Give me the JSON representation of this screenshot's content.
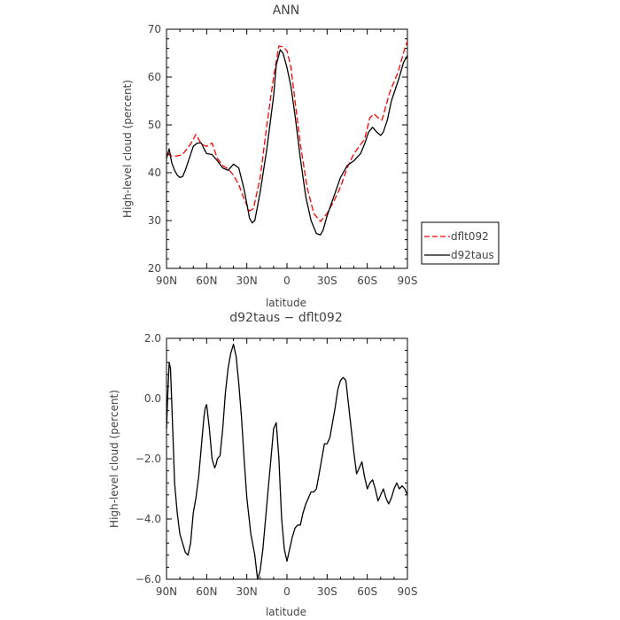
{
  "chart_data": [
    {
      "type": "line",
      "title": "ANN",
      "xlabel": "latitude",
      "ylabel": "High-level cloud (percent)",
      "xlim": [
        90,
        -90
      ],
      "ylim": [
        20,
        70
      ],
      "xticks": [
        90,
        60,
        30,
        0,
        -30,
        -60,
        -90
      ],
      "xtick_labels": [
        "90N",
        "60N",
        "30N",
        "0",
        "30S",
        "60S",
        "90S"
      ],
      "yticks": [
        20,
        30,
        40,
        50,
        60,
        70
      ],
      "ytick_labels": [
        "20",
        "30",
        "40",
        "50",
        "60",
        "70"
      ],
      "legend": {
        "placement": "right",
        "entries": [
          "dflt092",
          "d92taus"
        ]
      },
      "series": [
        {
          "name": "dflt092",
          "color": "#ff0000",
          "style": "dashed",
          "x": [
            90,
            86,
            82,
            78,
            72,
            68,
            64,
            60,
            56,
            52,
            48,
            44,
            40,
            36,
            32,
            28,
            25,
            20,
            15,
            10,
            6,
            3,
            0,
            -3,
            -6,
            -10,
            -15,
            -20,
            -25,
            -30,
            -35,
            -40,
            -45,
            -50,
            -54,
            -58,
            -62,
            -65,
            -68,
            -71,
            -74,
            -77,
            -80,
            -83,
            -86,
            -88,
            -90
          ],
          "y": [
            44,
            43.5,
            43.5,
            43.8,
            46,
            48,
            46,
            45.5,
            46.2,
            43,
            41.5,
            40.8,
            39.5,
            37.5,
            34.5,
            32,
            32.5,
            39,
            50,
            60,
            66.5,
            66.3,
            65.5,
            62,
            55,
            46,
            37,
            31.5,
            29.8,
            31.5,
            34,
            37,
            41,
            44,
            45.5,
            47,
            51.5,
            52.3,
            51.5,
            51,
            54,
            57,
            59,
            61,
            64,
            66,
            67.5
          ]
        },
        {
          "name": "d92taus",
          "color": "#000000",
          "style": "solid",
          "x": [
            90,
            88,
            86,
            84,
            82,
            80,
            78,
            76,
            73,
            70,
            67,
            64,
            62,
            60,
            56,
            52,
            48,
            44,
            40,
            36,
            32,
            30,
            28,
            26,
            24,
            20,
            15,
            10,
            8,
            5,
            3,
            0,
            -3,
            -6,
            -10,
            -14,
            -18,
            -22,
            -25,
            -27,
            -30,
            -35,
            -40,
            -45,
            -50,
            -55,
            -58,
            -61,
            -64,
            -67,
            -70,
            -72,
            -75,
            -78,
            -81,
            -84,
            -87,
            -90
          ],
          "y": [
            43,
            45,
            42,
            40.5,
            39.5,
            39,
            39.2,
            40.5,
            43,
            45.5,
            46.2,
            46.2,
            45,
            44,
            43.8,
            42.5,
            41,
            40.5,
            41.8,
            41,
            36.5,
            33.5,
            30.5,
            29.5,
            30,
            36,
            45,
            56,
            62.5,
            65.7,
            65,
            62,
            58,
            52,
            43,
            35,
            30,
            27.3,
            27,
            28,
            31,
            35,
            39,
            41.5,
            42.5,
            44,
            46,
            48.5,
            49.5,
            48.5,
            47.8,
            48.5,
            51,
            55,
            57.5,
            60,
            63,
            64.5
          ]
        }
      ]
    },
    {
      "type": "line",
      "title": "d92taus − dflt092",
      "xlabel": "latitude",
      "ylabel": "High-level cloud (percent)",
      "xlim": [
        90,
        -90
      ],
      "ylim": [
        -6,
        2
      ],
      "xticks": [
        90,
        60,
        30,
        0,
        -30,
        -60,
        -90
      ],
      "xtick_labels": [
        "90N",
        "60N",
        "30N",
        "0",
        "30S",
        "60S",
        "90S"
      ],
      "yticks": [
        2,
        0,
        -2,
        -4,
        -6
      ],
      "ytick_labels": [
        "2.0",
        "0.0",
        "−2.0",
        "−4.0",
        "−6.0"
      ],
      "series": [
        {
          "color": "#000000",
          "style": "solid",
          "x": [
            90,
            89,
            88,
            87,
            86,
            85,
            84,
            83,
            82,
            80,
            78,
            76,
            74,
            72,
            70,
            68,
            66,
            64,
            62,
            61,
            60,
            58,
            56,
            54,
            53,
            52,
            50,
            48,
            46,
            44,
            42,
            40,
            38,
            36,
            34,
            32,
            30,
            27,
            24,
            22,
            20,
            18,
            16,
            14,
            12,
            10,
            8,
            6,
            5,
            4,
            2,
            0,
            -2,
            -4,
            -6,
            -8,
            -10,
            -12,
            -14,
            -16,
            -18,
            -20,
            -22,
            -24,
            -26,
            -28,
            -30,
            -32,
            -34,
            -36,
            -38,
            -40,
            -42,
            -44,
            -46,
            -48,
            -50,
            -52,
            -54,
            -56,
            -58,
            -60,
            -62,
            -64,
            -66,
            -68,
            -70,
            -72,
            -74,
            -76,
            -78,
            -80,
            -82,
            -84,
            -86,
            -88,
            -90
          ],
          "y": [
            -1,
            0.2,
            1.2,
            1.0,
            -0.2,
            -1.5,
            -2.8,
            -3.3,
            -3.8,
            -4.5,
            -4.8,
            -5.1,
            -5.2,
            -4.8,
            -3.8,
            -3.3,
            -2.6,
            -1.6,
            -0.6,
            -0.3,
            -0.2,
            -1,
            -2,
            -2.3,
            -2.2,
            -2.0,
            -1.9,
            -1.0,
            0.2,
            1.0,
            1.5,
            1.8,
            1.4,
            0.5,
            -0.6,
            -2.0,
            -3.3,
            -4.5,
            -5.2,
            -6,
            -5.7,
            -5.0,
            -4.0,
            -3.0,
            -2.0,
            -1.0,
            -0.8,
            -2.0,
            -3.0,
            -4.0,
            -5.0,
            -5.4,
            -5.0,
            -4.6,
            -4.3,
            -4.2,
            -4.2,
            -3.8,
            -3.5,
            -3.3,
            -3.1,
            -3.1,
            -3.0,
            -2.5,
            -2.0,
            -1.5,
            -1.5,
            -1.3,
            -0.8,
            -0.3,
            0.3,
            0.6,
            0.7,
            0.6,
            -0.2,
            -1.0,
            -1.8,
            -2.5,
            -2.3,
            -2.1,
            -2.6,
            -3.0,
            -2.8,
            -2.7,
            -3.0,
            -3.4,
            -3.2,
            -3.0,
            -3.3,
            -3.5,
            -3.3,
            -3.0,
            -2.8,
            -3.0,
            -2.9,
            -3.0,
            -3.2
          ]
        }
      ]
    }
  ]
}
